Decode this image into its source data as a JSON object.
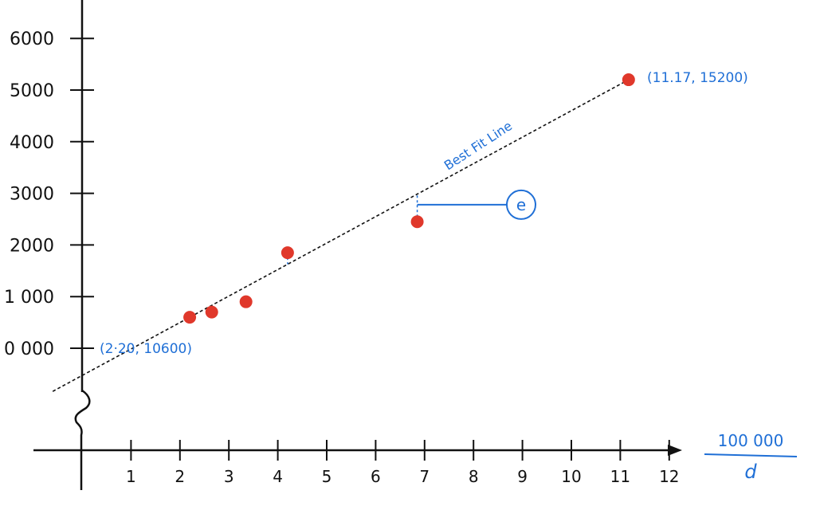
{
  "chart_data": {
    "type": "scatter",
    "title": "",
    "xlabel": {
      "numerator": "100 000",
      "denominator": "d"
    },
    "ylabel": "",
    "x_ticks": [
      "1",
      "2",
      "3",
      "4",
      "5",
      "6",
      "7",
      "8",
      "9",
      "10",
      "11",
      "12"
    ],
    "y_ticks": [
      "0 000",
      "1 000",
      "2000",
      "3000",
      "4000",
      "5000",
      "6000"
    ],
    "xlim": [
      0,
      12
    ],
    "ylim": [
      10000,
      16000
    ],
    "axis_break_on_y": true,
    "series": [
      {
        "points": [
          {
            "x": 2.2,
            "y": 10600
          },
          {
            "x": 2.65,
            "y": 10700
          },
          {
            "x": 3.35,
            "y": 10900
          },
          {
            "x": 4.2,
            "y": 11850
          },
          {
            "x": 6.85,
            "y": 12450
          },
          {
            "x": 11.17,
            "y": 15200
          }
        ]
      }
    ],
    "best_fit": {
      "from": {
        "x": 2.2,
        "y": 10600
      },
      "to": {
        "x": 11.17,
        "y": 15200
      }
    },
    "annotations": {
      "fit_line_label": "Best Fit Line",
      "start_point_label": "(2·20, 10600)",
      "end_point_label": "(11.17,  15200)",
      "residual_label": "e"
    },
    "colors": {
      "points": "#e0382b",
      "annotation": "#1f6fd6",
      "axes": "#111111"
    }
  }
}
